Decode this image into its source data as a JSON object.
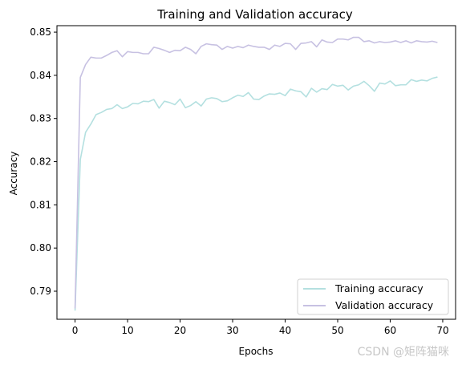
{
  "chart_data": {
    "type": "line",
    "title": "Training and Validation accuracy",
    "xlabel": "Epochs",
    "ylabel": "Accuracy",
    "xlim": [
      -3.45,
      72.45
    ],
    "ylim": [
      0.7835,
      0.8515
    ],
    "xticks": [
      0,
      10,
      20,
      30,
      40,
      50,
      60,
      70
    ],
    "yticks": [
      0.79,
      0.8,
      0.81,
      0.82,
      0.83,
      0.84,
      0.85
    ],
    "ytick_labels": [
      "0.79",
      "0.80",
      "0.81",
      "0.82",
      "0.83",
      "0.84",
      "0.85"
    ],
    "grid": false,
    "legend_position": "bottom-right",
    "series": [
      {
        "name": "Training accuracy",
        "color": "#b4e0e0",
        "values": [
          0.7855,
          0.8205,
          0.8268,
          0.8287,
          0.8309,
          0.8314,
          0.8321,
          0.8323,
          0.8332,
          0.8323,
          0.8327,
          0.8335,
          0.8334,
          0.834,
          0.8339,
          0.8344,
          0.8324,
          0.834,
          0.8337,
          0.8332,
          0.8345,
          0.8325,
          0.833,
          0.8339,
          0.8329,
          0.8345,
          0.8348,
          0.8346,
          0.8339,
          0.8341,
          0.8348,
          0.8354,
          0.8351,
          0.836,
          0.8345,
          0.8344,
          0.8352,
          0.8357,
          0.8356,
          0.8359,
          0.8353,
          0.8368,
          0.8364,
          0.8362,
          0.835,
          0.837,
          0.8361,
          0.8369,
          0.8367,
          0.8379,
          0.8375,
          0.8377,
          0.8366,
          0.8375,
          0.8378,
          0.8386,
          0.8376,
          0.8363,
          0.8382,
          0.838,
          0.8387,
          0.8376,
          0.8378,
          0.8378,
          0.839,
          0.8386,
          0.8389,
          0.8387,
          0.8393,
          0.8396
        ]
      },
      {
        "name": "Validation accuracy",
        "color": "#c7c1e2",
        "values": [
          0.786,
          0.8395,
          0.8425,
          0.8442,
          0.844,
          0.844,
          0.8446,
          0.8453,
          0.8457,
          0.8443,
          0.8455,
          0.8453,
          0.8453,
          0.845,
          0.845,
          0.8465,
          0.8462,
          0.8458,
          0.8453,
          0.8458,
          0.8457,
          0.8465,
          0.846,
          0.845,
          0.8467,
          0.8473,
          0.8471,
          0.847,
          0.846,
          0.8467,
          0.8463,
          0.8467,
          0.8464,
          0.847,
          0.8467,
          0.8465,
          0.8465,
          0.846,
          0.847,
          0.8467,
          0.8474,
          0.8473,
          0.846,
          0.8474,
          0.8475,
          0.8478,
          0.8466,
          0.8482,
          0.8477,
          0.8476,
          0.8484,
          0.8484,
          0.8482,
          0.8488,
          0.8488,
          0.8478,
          0.848,
          0.8475,
          0.8478,
          0.8476,
          0.8477,
          0.848,
          0.8476,
          0.848,
          0.8475,
          0.848,
          0.8478,
          0.8477,
          0.8479,
          0.8476
        ]
      }
    ]
  },
  "watermark": "CSDN @矩阵猫咪"
}
